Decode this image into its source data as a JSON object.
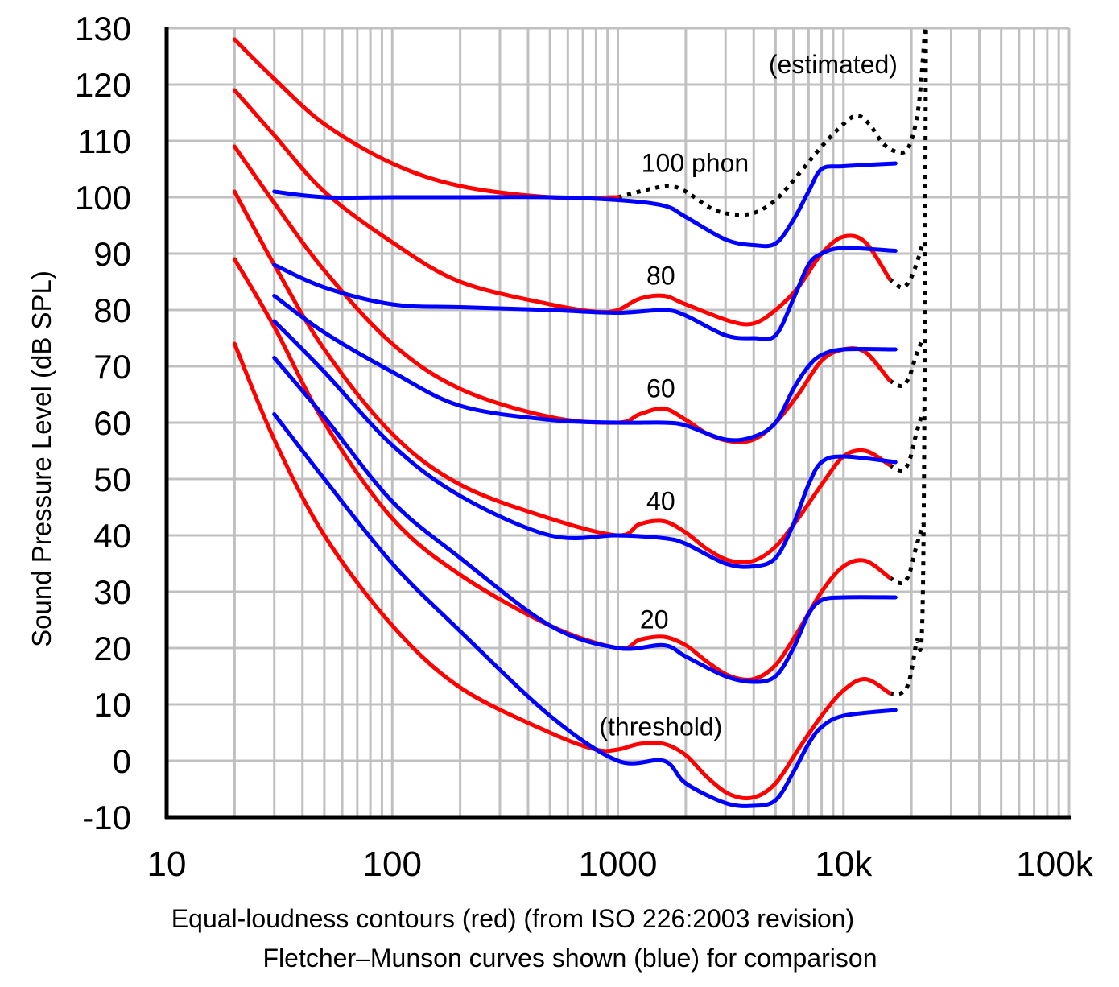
{
  "chart_data": {
    "type": "line",
    "xlabel": "",
    "ylabel": "Sound Pressure Level (dB SPL)",
    "xscale": "log",
    "xlim": [
      10,
      100000
    ],
    "ylim": [
      -10,
      130
    ],
    "grid": true,
    "x_tick_labels": [
      {
        "value": 10,
        "label": "10"
      },
      {
        "value": 100,
        "label": "100"
      },
      {
        "value": 1000,
        "label": "1000"
      },
      {
        "value": 10000,
        "label": "10k"
      },
      {
        "value": 100000,
        "label": "100k"
      }
    ],
    "y_ticks": [
      -10,
      0,
      10,
      20,
      30,
      40,
      50,
      60,
      70,
      80,
      90,
      100,
      110,
      120,
      130
    ],
    "notes": [
      "Equal-loudness contours (red) (from ISO 226:2003 revision)",
      "Fletcher–Munson curves shown (blue) for comparison"
    ],
    "annotations": [
      {
        "text": "(estimated)",
        "x": 9000,
        "y": 122
      },
      {
        "text": "100 phon",
        "x": 2200,
        "y": 104.5
      },
      {
        "text": "80",
        "x": 1550,
        "y": 84.5
      },
      {
        "text": "60",
        "x": 1550,
        "y": 64.5
      },
      {
        "text": "40",
        "x": 1550,
        "y": 44.5
      },
      {
        "text": "20",
        "x": 1450,
        "y": 23.5
      },
      {
        "text": "(threshold)",
        "x": 1550,
        "y": 4.5
      }
    ],
    "colors": {
      "iso": "#ff0000",
      "fletcher_munson": "#0000ff",
      "estimated": "#000000"
    },
    "iso_series": [
      {
        "points": [
          [
            20,
            128
          ],
          [
            30,
            121
          ],
          [
            50,
            113
          ],
          [
            100,
            106
          ],
          [
            200,
            102
          ],
          [
            500,
            100
          ],
          [
            1000,
            100
          ]
        ]
      },
      {
        "points": [
          [
            20,
            119
          ],
          [
            30,
            111
          ],
          [
            50,
            101
          ],
          [
            100,
            92
          ],
          [
            200,
            85
          ],
          [
            500,
            81
          ],
          [
            800,
            79.7
          ],
          [
            1000,
            80
          ],
          [
            1250,
            82
          ],
          [
            1600,
            82.5
          ],
          [
            2000,
            81
          ],
          [
            3150,
            78
          ],
          [
            4000,
            77.6
          ],
          [
            5000,
            80
          ],
          [
            6300,
            84
          ],
          [
            8000,
            90
          ],
          [
            10000,
            93
          ],
          [
            12500,
            92
          ],
          [
            16000,
            85.5
          ]
        ]
      },
      {
        "points": [
          [
            20,
            109
          ],
          [
            30,
            99
          ],
          [
            50,
            87
          ],
          [
            100,
            74
          ],
          [
            200,
            66
          ],
          [
            500,
            61
          ],
          [
            1000,
            60
          ],
          [
            1250,
            61.5
          ],
          [
            1600,
            62.5
          ],
          [
            2000,
            60.5
          ],
          [
            2500,
            58
          ],
          [
            3150,
            56.7
          ],
          [
            4000,
            57
          ],
          [
            5000,
            60
          ],
          [
            6300,
            65
          ],
          [
            8000,
            71
          ],
          [
            10000,
            73
          ],
          [
            12500,
            72.5
          ],
          [
            16000,
            67.5
          ]
        ]
      },
      {
        "points": [
          [
            20,
            101
          ],
          [
            30,
            88
          ],
          [
            50,
            73
          ],
          [
            100,
            58
          ],
          [
            200,
            49
          ],
          [
            500,
            43
          ],
          [
            1000,
            40
          ],
          [
            1250,
            42
          ],
          [
            1600,
            42.5
          ],
          [
            2000,
            40.5
          ],
          [
            2500,
            37.5
          ],
          [
            3150,
            35.5
          ],
          [
            4000,
            35.5
          ],
          [
            5000,
            38
          ],
          [
            6300,
            43
          ],
          [
            8000,
            49
          ],
          [
            10000,
            54
          ],
          [
            12500,
            55
          ],
          [
            16000,
            52.5
          ]
        ]
      },
      {
        "points": [
          [
            20,
            89
          ],
          [
            30,
            77
          ],
          [
            50,
            60
          ],
          [
            100,
            43
          ],
          [
            200,
            33
          ],
          [
            500,
            24
          ],
          [
            1000,
            20
          ],
          [
            1250,
            21.5
          ],
          [
            1600,
            22
          ],
          [
            2000,
            20.5
          ],
          [
            2500,
            17.5
          ],
          [
            3150,
            15
          ],
          [
            4000,
            14.5
          ],
          [
            5000,
            17
          ],
          [
            6300,
            23
          ],
          [
            8000,
            30
          ],
          [
            10000,
            34.5
          ],
          [
            12500,
            35.5
          ],
          [
            16000,
            32.5
          ]
        ]
      },
      {
        "points": [
          [
            20,
            74
          ],
          [
            30,
            57
          ],
          [
            50,
            40
          ],
          [
            100,
            24
          ],
          [
            200,
            13
          ],
          [
            500,
            5
          ],
          [
            800,
            2
          ],
          [
            1000,
            2
          ],
          [
            1250,
            3
          ],
          [
            1600,
            3
          ],
          [
            2000,
            1
          ],
          [
            2500,
            -3
          ],
          [
            3150,
            -6
          ],
          [
            4000,
            -6.5
          ],
          [
            5000,
            -4
          ],
          [
            6300,
            2
          ],
          [
            8000,
            8
          ],
          [
            10000,
            12.5
          ],
          [
            12500,
            14.5
          ],
          [
            16000,
            12
          ]
        ]
      }
    ],
    "fletcher_munson_series": [
      {
        "points": [
          [
            30,
            101
          ],
          [
            50,
            100
          ],
          [
            100,
            100
          ],
          [
            200,
            100
          ],
          [
            500,
            100
          ],
          [
            1000,
            99.5
          ],
          [
            1600,
            98.5
          ],
          [
            2000,
            96.5
          ],
          [
            3000,
            92.5
          ],
          [
            4000,
            91.5
          ],
          [
            5000,
            91.8
          ],
          [
            6000,
            96
          ],
          [
            7000,
            101
          ],
          [
            8000,
            105
          ],
          [
            10000,
            105.5
          ],
          [
            17000,
            106
          ]
        ]
      },
      {
        "points": [
          [
            30,
            88
          ],
          [
            50,
            84
          ],
          [
            100,
            81
          ],
          [
            200,
            80.5
          ],
          [
            500,
            80
          ],
          [
            1000,
            79.5
          ],
          [
            1600,
            80
          ],
          [
            2000,
            79
          ],
          [
            3000,
            75.5
          ],
          [
            4000,
            75
          ],
          [
            5000,
            75.5
          ],
          [
            6000,
            82
          ],
          [
            7000,
            88
          ],
          [
            8000,
            90
          ],
          [
            10000,
            91
          ],
          [
            17000,
            90.5
          ]
        ]
      },
      {
        "points": [
          [
            30,
            82.5
          ],
          [
            50,
            76
          ],
          [
            100,
            69
          ],
          [
            200,
            63
          ],
          [
            500,
            60.5
          ],
          [
            1000,
            60
          ],
          [
            1600,
            60
          ],
          [
            2000,
            59.5
          ],
          [
            3000,
            57
          ],
          [
            4000,
            57.5
          ],
          [
            5000,
            60
          ],
          [
            6000,
            66
          ],
          [
            7000,
            70
          ],
          [
            8000,
            72
          ],
          [
            10000,
            73
          ],
          [
            17000,
            73
          ]
        ]
      },
      {
        "points": [
          [
            30,
            78
          ],
          [
            50,
            69
          ],
          [
            100,
            56
          ],
          [
            200,
            47
          ],
          [
            500,
            40
          ],
          [
            1000,
            40
          ],
          [
            1600,
            39.5
          ],
          [
            2000,
            38.5
          ],
          [
            3000,
            35
          ],
          [
            4000,
            34.5
          ],
          [
            5000,
            36
          ],
          [
            6000,
            42
          ],
          [
            7000,
            49
          ],
          [
            8000,
            53
          ],
          [
            10000,
            54
          ],
          [
            17000,
            53
          ]
        ]
      },
      {
        "points": [
          [
            30,
            71.5
          ],
          [
            50,
            61
          ],
          [
            100,
            46
          ],
          [
            200,
            36
          ],
          [
            500,
            24
          ],
          [
            1000,
            20
          ],
          [
            1600,
            20.5
          ],
          [
            2000,
            18.5
          ],
          [
            3000,
            15
          ],
          [
            4000,
            14
          ],
          [
            5000,
            15
          ],
          [
            6000,
            20
          ],
          [
            7000,
            26
          ],
          [
            8000,
            28.5
          ],
          [
            10000,
            29
          ],
          [
            17000,
            29
          ]
        ]
      },
      {
        "points": [
          [
            30,
            61.5
          ],
          [
            50,
            50
          ],
          [
            100,
            35
          ],
          [
            200,
            23
          ],
          [
            500,
            8
          ],
          [
            1000,
            0
          ],
          [
            1600,
            0
          ],
          [
            2000,
            -4
          ],
          [
            3000,
            -7.5
          ],
          [
            4000,
            -8
          ],
          [
            5000,
            -7
          ],
          [
            6000,
            -2
          ],
          [
            7000,
            3
          ],
          [
            8000,
            6
          ],
          [
            10000,
            8
          ],
          [
            17000,
            9
          ]
        ]
      }
    ],
    "estimated_series": [
      {
        "points": [
          [
            1000,
            100
          ],
          [
            1400,
            101.5
          ],
          [
            1700,
            102
          ],
          [
            2000,
            101
          ],
          [
            2600,
            98
          ],
          [
            3200,
            97
          ],
          [
            4000,
            97.2
          ],
          [
            5000,
            99.5
          ],
          [
            6300,
            104
          ],
          [
            8000,
            109
          ],
          [
            10000,
            113
          ],
          [
            11500,
            114.5
          ],
          [
            13000,
            113
          ],
          [
            15000,
            109.5
          ],
          [
            17500,
            108
          ],
          [
            19500,
            109
          ],
          [
            21500,
            116
          ],
          [
            23000,
            130
          ]
        ]
      },
      {
        "points": [
          [
            16000,
            85.5
          ],
          [
            18000,
            84
          ],
          [
            19500,
            85
          ],
          [
            21000,
            88
          ],
          [
            22500,
            92
          ]
        ]
      },
      {
        "points": [
          [
            16000,
            67.5
          ],
          [
            18000,
            66.5
          ],
          [
            19500,
            68
          ],
          [
            21000,
            72
          ],
          [
            22500,
            75
          ]
        ]
      },
      {
        "points": [
          [
            16000,
            52.5
          ],
          [
            18000,
            51.5
          ],
          [
            19500,
            53
          ],
          [
            21000,
            58
          ],
          [
            22500,
            62
          ]
        ]
      },
      {
        "points": [
          [
            16000,
            32.5
          ],
          [
            18000,
            31.5
          ],
          [
            19500,
            33
          ],
          [
            21000,
            38
          ],
          [
            22500,
            42
          ]
        ]
      },
      {
        "points": [
          [
            16000,
            12
          ],
          [
            18000,
            12
          ],
          [
            19500,
            14
          ],
          [
            21000,
            21
          ],
          [
            22500,
            30
          ],
          [
            23200,
            130
          ]
        ]
      }
    ]
  }
}
